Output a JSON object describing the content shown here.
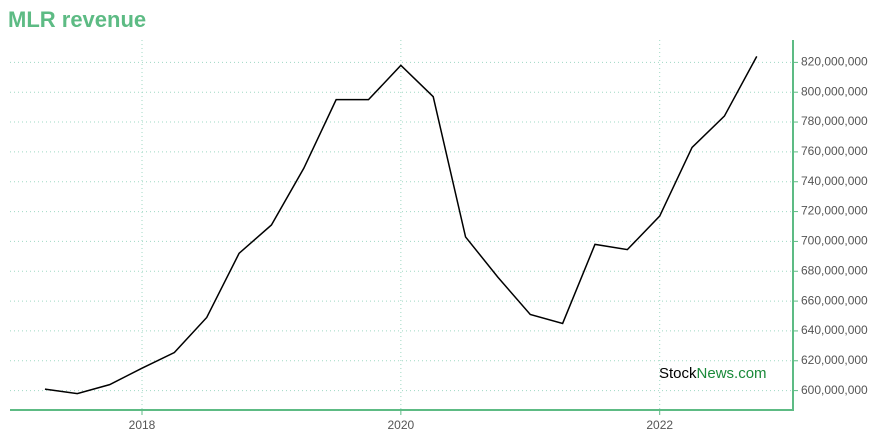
{
  "chart_data": {
    "type": "line",
    "title": "MLR revenue",
    "x": [
      2017.25,
      2017.5,
      2017.75,
      2018,
      2018.25,
      2018.5,
      2018.75,
      2019,
      2019.25,
      2019.5,
      2019.75,
      2020,
      2020.25,
      2020.5,
      2020.75,
      2021,
      2021.25,
      2021.5,
      2021.75,
      2022,
      2022.25,
      2022.5,
      2022.75
    ],
    "series": [
      {
        "name": "MLR revenue",
        "color": "#000000",
        "values": [
          601000000,
          598000000,
          604000000,
          615000000,
          625500000,
          649000000,
          692000000,
          711000000,
          749000000,
          795000000,
          795000000,
          818000000,
          797000000,
          703000000,
          676000000,
          651000000,
          645000000,
          698000000,
          694500000,
          717000000,
          763000000,
          784000000,
          824000000
        ]
      }
    ],
    "xlim": [
      2016.98,
      2023.03
    ],
    "xticks": [
      2018,
      2020,
      2022
    ],
    "ylim": [
      587000000,
      835000000
    ],
    "yticks": [
      {
        "value": 600000000,
        "label": "600,000,000"
      },
      {
        "value": 620000000,
        "label": "620,000,000"
      },
      {
        "value": 640000000,
        "label": "640,000,000"
      },
      {
        "value": 660000000,
        "label": "660,000,000"
      },
      {
        "value": 680000000,
        "label": "680,000,000"
      },
      {
        "value": 700000000,
        "label": "700,000,000"
      },
      {
        "value": 720000000,
        "label": "720,000,000"
      },
      {
        "value": 740000000,
        "label": "740,000,000"
      },
      {
        "value": 760000000,
        "label": "760,000,000"
      },
      {
        "value": 780000000,
        "label": "780,000,000"
      },
      {
        "value": 800000000,
        "label": "800,000,000"
      },
      {
        "value": 820000000,
        "label": "820,000,000"
      }
    ],
    "grid": true,
    "axis_color": "#5dbb84",
    "watermark": [
      "Stock",
      "News.com"
    ]
  }
}
